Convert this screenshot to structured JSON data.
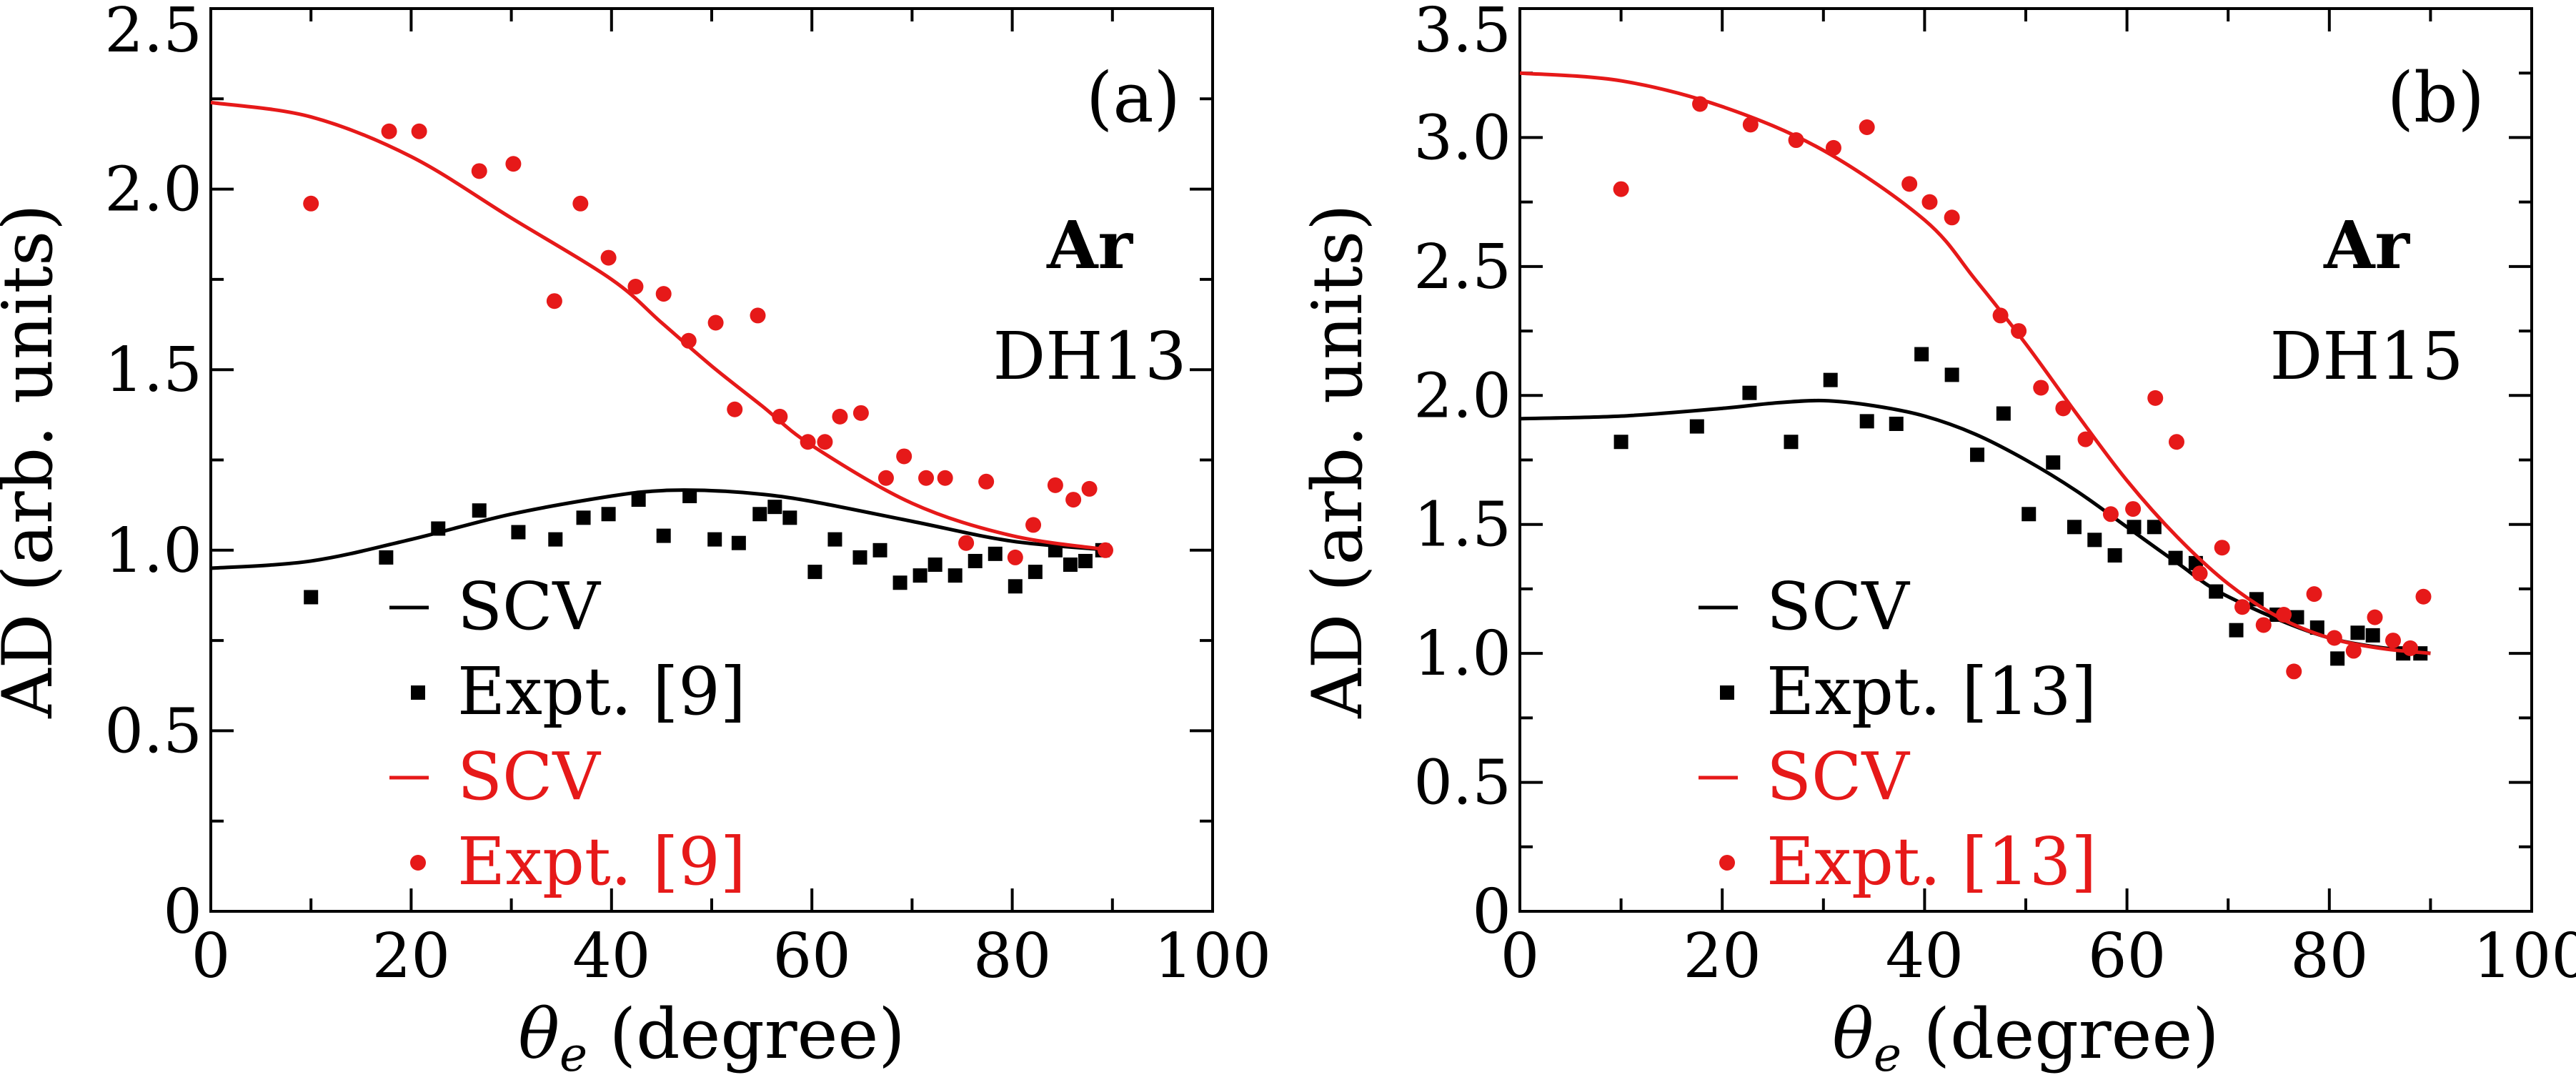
{
  "colors": {
    "black": "#000000",
    "red": "#e61919"
  },
  "chart_data": [
    {
      "type": "scatter",
      "panel_label": "(a)",
      "element": "Ar",
      "subtitle": "DH13",
      "xlabel": "θe (degree)",
      "xlabel_main": "θ",
      "xlabel_sub": "e",
      "xlabel_rest": " (degree)",
      "ylabel": "AD (arb. units)",
      "xlim": [
        0,
        100
      ],
      "ylim": [
        0,
        2.5
      ],
      "xticks": [
        "0",
        "20",
        "40",
        "60",
        "80",
        "100"
      ],
      "yticks": [
        "0",
        "0.5",
        "1.0",
        "1.5",
        "2.0",
        "2.5"
      ],
      "legend": {
        "position": "bottom-left",
        "entries": [
          {
            "label": "SCV",
            "kind": "line",
            "color": "#000000"
          },
          {
            "label": "Expt. [9]",
            "kind": "square",
            "color": "#000000"
          },
          {
            "label": "SCV",
            "kind": "line",
            "color": "#e61919"
          },
          {
            "label": "Expt. [9]",
            "kind": "circle",
            "color": "#e61919"
          }
        ]
      },
      "series": [
        {
          "name": "SCV",
          "kind": "line",
          "color": "#000000",
          "x": [
            0,
            10,
            20,
            30,
            40,
            45,
            50,
            55,
            60,
            70,
            80,
            90
          ],
          "y": [
            0.95,
            0.97,
            1.03,
            1.1,
            1.15,
            1.165,
            1.165,
            1.155,
            1.135,
            1.08,
            1.025,
            1.0
          ]
        },
        {
          "name": "Expt. [9]",
          "kind": "square",
          "color": "#000000",
          "x": [
            10,
            17.5,
            22.7,
            26.8,
            30.7,
            34.4,
            37.2,
            39.7,
            42.7,
            45.2,
            47.8,
            50.3,
            52.7,
            54.8,
            56.3,
            57.8,
            60.3,
            62.3,
            64.8,
            66.8,
            68.8,
            70.8,
            72.3,
            74.3,
            76.3,
            78.3,
            80.3,
            82.3,
            84.3,
            85.8,
            87.3,
            89
          ],
          "y": [
            0.87,
            0.98,
            1.06,
            1.11,
            1.05,
            1.03,
            1.09,
            1.1,
            1.14,
            1.04,
            1.15,
            1.03,
            1.02,
            1.1,
            1.12,
            1.09,
            0.94,
            1.03,
            0.98,
            1.0,
            0.91,
            0.93,
            0.96,
            0.93,
            0.97,
            0.99,
            0.9,
            0.94,
            1.0,
            0.96,
            0.97,
            1.0
          ]
        },
        {
          "name": "SCV",
          "kind": "line",
          "color": "#e61919",
          "x": [
            0,
            10,
            20,
            30,
            40,
            45,
            50,
            55,
            60,
            70,
            80,
            90
          ],
          "y": [
            2.24,
            2.2,
            2.09,
            1.92,
            1.75,
            1.63,
            1.51,
            1.4,
            1.29,
            1.13,
            1.04,
            1.0
          ]
        },
        {
          "name": "Expt. [9]",
          "kind": "circle",
          "color": "#e61919",
          "x": [
            10,
            17.8,
            20.8,
            26.8,
            30.2,
            34.3,
            36.9,
            39.7,
            42.4,
            45.2,
            47.7,
            50.4,
            52.3,
            54.6,
            56.8,
            59.6,
            61.3,
            62.8,
            64.9,
            67.4,
            69.2,
            71.4,
            73.3,
            75.4,
            77.4,
            80.3,
            82.1,
            84.3,
            86.1,
            87.7,
            89.3
          ],
          "y": [
            1.96,
            2.16,
            2.16,
            2.05,
            2.07,
            1.69,
            1.96,
            1.81,
            1.73,
            1.71,
            1.58,
            1.63,
            1.39,
            1.65,
            1.37,
            1.3,
            1.3,
            1.37,
            1.38,
            1.2,
            1.26,
            1.2,
            1.2,
            1.02,
            1.19,
            0.98,
            1.07,
            1.18,
            1.14,
            1.17,
            1.0
          ]
        }
      ]
    },
    {
      "type": "scatter",
      "panel_label": "(b)",
      "element": "Ar",
      "subtitle": "DH15",
      "xlabel": "θe (degree)",
      "xlabel_main": "θ",
      "xlabel_sub": "e",
      "xlabel_rest": " (degree)",
      "ylabel": "AD (arb. units)",
      "xlim": [
        0,
        100
      ],
      "ylim": [
        0,
        3.5
      ],
      "xticks": [
        "0",
        "20",
        "40",
        "60",
        "80",
        "100"
      ],
      "yticks": [
        "0",
        "0.5",
        "1.0",
        "1.5",
        "2.0",
        "2.5",
        "3.0",
        "3.5"
      ],
      "legend": {
        "position": "bottom-left",
        "entries": [
          {
            "label": "SCV",
            "kind": "line",
            "color": "#000000"
          },
          {
            "label": "Expt. [13]",
            "kind": "square",
            "color": "#000000"
          },
          {
            "label": "SCV",
            "kind": "line",
            "color": "#e61919"
          },
          {
            "label": "Expt. [13]",
            "kind": "circle",
            "color": "#e61919"
          }
        ]
      },
      "series": [
        {
          "name": "SCV",
          "kind": "line",
          "color": "#000000",
          "x": [
            0,
            10,
            20,
            25,
            30,
            35,
            40,
            45,
            50,
            55,
            60,
            65,
            70,
            80,
            90
          ],
          "y": [
            1.91,
            1.92,
            1.95,
            1.97,
            1.98,
            1.96,
            1.92,
            1.85,
            1.75,
            1.63,
            1.49,
            1.35,
            1.22,
            1.06,
            1.0
          ]
        },
        {
          "name": "Expt. [13]",
          "kind": "square",
          "color": "#000000",
          "x": [
            10,
            17.5,
            22.7,
            26.8,
            30.7,
            34.3,
            37.2,
            39.7,
            42.7,
            45.2,
            47.8,
            50.3,
            52.7,
            54.8,
            56.8,
            58.8,
            60.7,
            62.7,
            64.8,
            66.8,
            68.8,
            70.8,
            72.8,
            74.8,
            76.8,
            78.8,
            80.8,
            82.8,
            84.3,
            87.3,
            89
          ],
          "y": [
            1.82,
            1.88,
            2.01,
            1.82,
            2.06,
            1.9,
            1.89,
            2.16,
            2.08,
            1.77,
            1.93,
            1.54,
            1.74,
            1.49,
            1.44,
            1.38,
            1.49,
            1.49,
            1.37,
            1.35,
            1.24,
            1.09,
            1.21,
            1.15,
            1.14,
            1.1,
            0.98,
            1.08,
            1.07,
            1.0,
            1.0
          ]
        },
        {
          "name": "SCV",
          "kind": "line",
          "color": "#e61919",
          "x": [
            0,
            10,
            20,
            30,
            40,
            45,
            50,
            55,
            60,
            65,
            70,
            75,
            80,
            85,
            90
          ],
          "y": [
            3.25,
            3.22,
            3.12,
            2.95,
            2.68,
            2.45,
            2.2,
            1.93,
            1.67,
            1.45,
            1.27,
            1.14,
            1.06,
            1.02,
            1.0
          ]
        },
        {
          "name": "Expt. [13]",
          "kind": "circle",
          "color": "#e61919",
          "x": [
            10,
            17.8,
            22.8,
            27.3,
            31,
            34.3,
            38.5,
            40.5,
            42.7,
            47.5,
            49.3,
            51.5,
            53.7,
            55.9,
            58.4,
            60.6,
            62.8,
            64.9,
            67.2,
            69.4,
            71.4,
            73.5,
            75.5,
            76.5,
            78.5,
            80.5,
            82.4,
            84.5,
            86.3,
            88,
            89.3
          ],
          "y": [
            2.8,
            3.13,
            3.05,
            2.99,
            2.96,
            3.04,
            2.82,
            2.75,
            2.69,
            2.31,
            2.25,
            2.03,
            1.95,
            1.83,
            1.54,
            1.56,
            1.99,
            1.82,
            1.31,
            1.41,
            1.18,
            1.11,
            1.15,
            0.93,
            1.23,
            1.06,
            1.01,
            1.14,
            1.05,
            1.02,
            1.22
          ]
        }
      ]
    }
  ]
}
